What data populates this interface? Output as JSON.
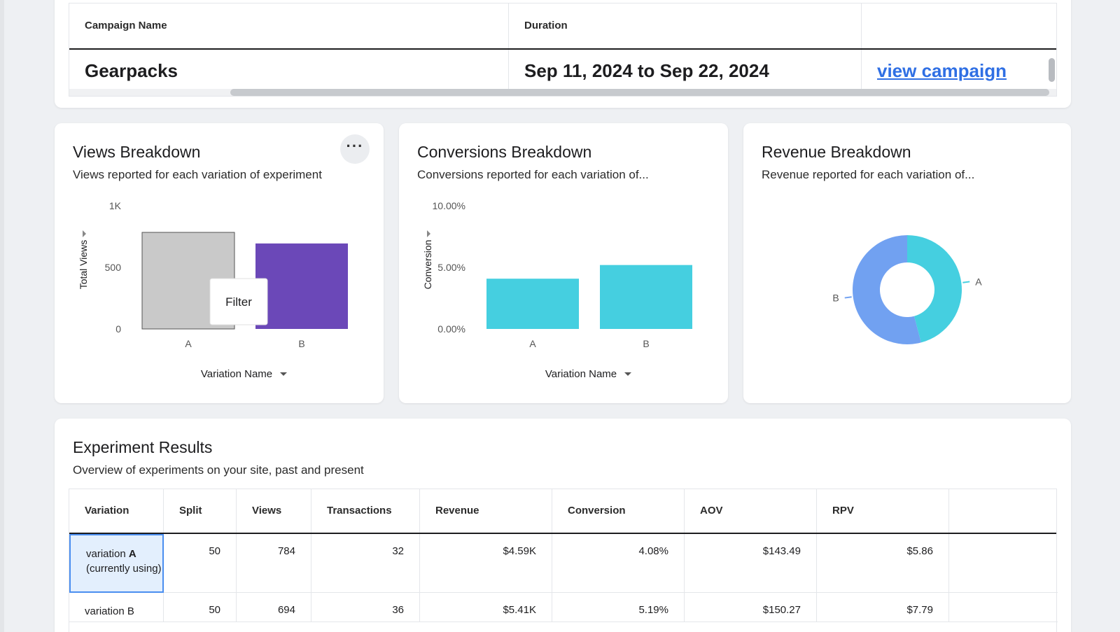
{
  "campaign": {
    "headers": [
      "Campaign Name",
      "Duration",
      ""
    ],
    "name": "Gearpacks",
    "duration": "Sep 11, 2024 to Sep 22, 2024",
    "link_label": "view campaign"
  },
  "views_panel": {
    "title": "Views Breakdown",
    "subtitle": "Views reported for each variation of experiment",
    "more_label": "···",
    "tooltip": "Filter",
    "chart_data": {
      "type": "bar",
      "categories": [
        "A",
        "B"
      ],
      "values": [
        784,
        694
      ],
      "ylabel": "Total Views",
      "xlabel": "Variation Name",
      "ylim": [
        0,
        1000
      ],
      "yticks": [
        "0",
        "500",
        "1K"
      ],
      "colors": [
        "#c9c9c9",
        "#6b48b8"
      ]
    }
  },
  "conversions_panel": {
    "title": "Conversions Breakdown",
    "subtitle": "Conversions reported for each variation of...",
    "chart_data": {
      "type": "bar",
      "categories": [
        "A",
        "B"
      ],
      "values": [
        4.08,
        5.19
      ],
      "ylabel": "Conversion",
      "xlabel": "Variation Name",
      "ylim": [
        0,
        10
      ],
      "yticks": [
        "0.00%",
        "5.00%",
        "10.00%"
      ],
      "colors": [
        "#45cfe0",
        "#45cfe0"
      ]
    }
  },
  "revenue_panel": {
    "title": "Revenue Breakdown",
    "subtitle": "Revenue reported for each variation of...",
    "chart_data": {
      "type": "pie",
      "labels": [
        "A",
        "B"
      ],
      "values": [
        4.59,
        5.41
      ],
      "colors": [
        "#45cfe0",
        "#71a1f1"
      ]
    }
  },
  "results": {
    "title": "Experiment Results",
    "subtitle": "Overview of experiments on your site, past and present",
    "headers": [
      "Variation",
      "Split",
      "Views",
      "Transactions",
      "Revenue",
      "Conversion",
      "AOV",
      "RPV",
      ""
    ],
    "rows": [
      {
        "variation_prefix": "variation ",
        "variation_bold": "A",
        "variation_suffix": "(currently using)",
        "split": "50",
        "views": "784",
        "transactions": "32",
        "revenue": "$4.59K",
        "conversion": "4.08%",
        "aov": "$143.49",
        "rpv": "$5.86"
      },
      {
        "variation_prefix": "variation B",
        "variation_bold": "",
        "variation_suffix": "",
        "split": "50",
        "views": "694",
        "transactions": "36",
        "revenue": "$5.41K",
        "conversion": "5.19%",
        "aov": "$150.27",
        "rpv": "$7.79"
      }
    ]
  }
}
